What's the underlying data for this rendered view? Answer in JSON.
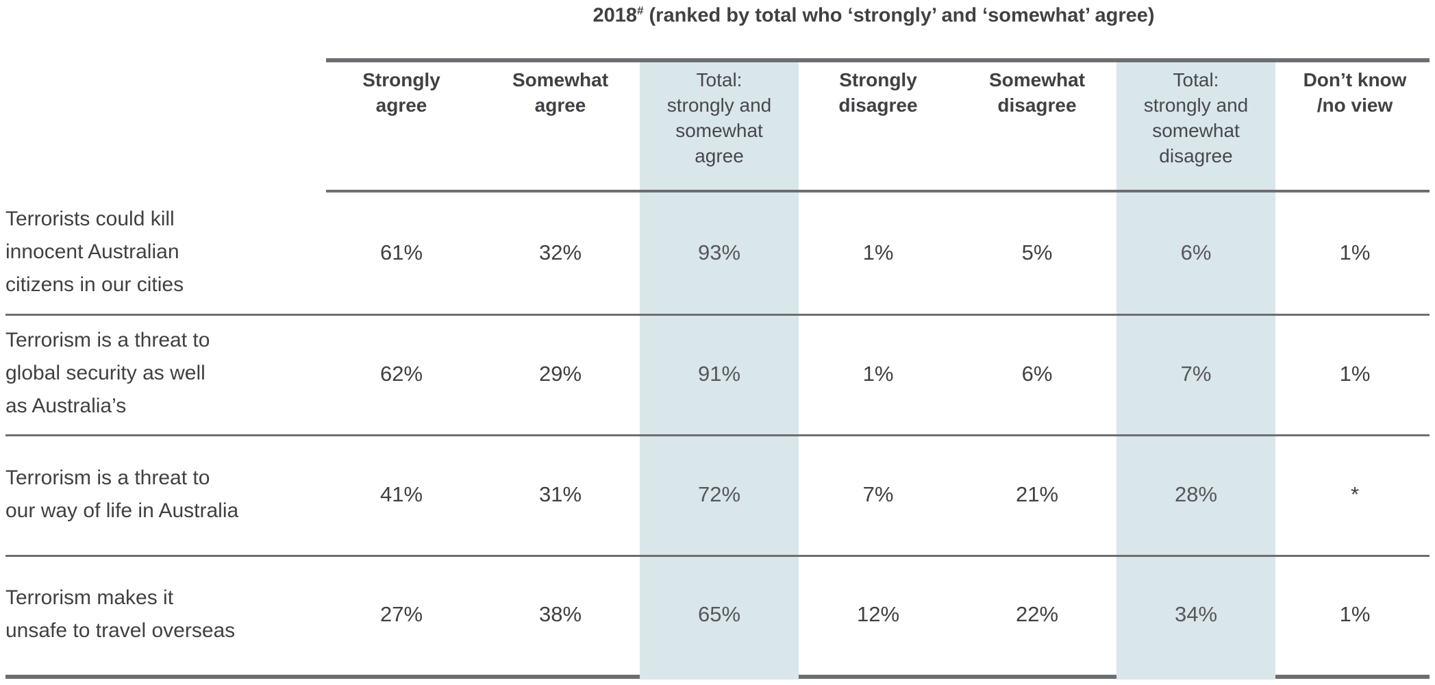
{
  "title": {
    "year": "2018",
    "superscript": "#",
    "rest": " (ranked by total who ‘strongly’ and ‘somewhat’ agree)"
  },
  "header": {
    "cols": [
      "Strongly\nagree",
      "Somewhat\nagree",
      "Total:\nstrongly and\nsomewhat\nagree",
      "Strongly\ndisagree",
      "Somewhat\ndisagree",
      "Total:\nstrongly and\nsomewhat\ndisagree",
      "Don’t know\n/no view"
    ]
  },
  "labels": [
    "Terrorists could kill\ninnocent Australian\ncitizens in our cities",
    "Terrorism is a threat to\nglobal security as well\nas Australia’s",
    "Terrorism is a threat to\nour way of life in Australia",
    "Terrorism makes it\nunsafe to travel overseas"
  ],
  "colors": {
    "highlight": "#d9e6ea",
    "rule_gray": "#6d6e71",
    "text_dark": "#3f4043",
    "text_muted": "#56575b"
  },
  "chart_data": {
    "type": "table",
    "title": "2018# (ranked by total who ‘strongly’ and ‘somewhat’ agree)",
    "columns": [
      "Strongly agree",
      "Somewhat agree",
      "Total: strongly and somewhat agree",
      "Strongly disagree",
      "Somewhat disagree",
      "Total: strongly and somewhat disagree",
      "Don’t know /no view"
    ],
    "highlighted_columns": [
      2,
      5
    ],
    "rows": [
      {
        "label": "Terrorists could kill innocent Australian citizens in our cities",
        "values": [
          "61%",
          "32%",
          "93%",
          "1%",
          "5%",
          "6%",
          "1%"
        ]
      },
      {
        "label": "Terrorism is a threat to global security as well as Australia’s",
        "values": [
          "62%",
          "29%",
          "91%",
          "1%",
          "6%",
          "7%",
          "1%"
        ]
      },
      {
        "label": "Terrorism is a threat to our way of life in Australia",
        "values": [
          "41%",
          "31%",
          "72%",
          "7%",
          "21%",
          "28%",
          "*"
        ]
      },
      {
        "label": "Terrorism makes it unsafe to travel overseas",
        "values": [
          "27%",
          "38%",
          "65%",
          "12%",
          "22%",
          "34%",
          "1%"
        ]
      }
    ]
  }
}
